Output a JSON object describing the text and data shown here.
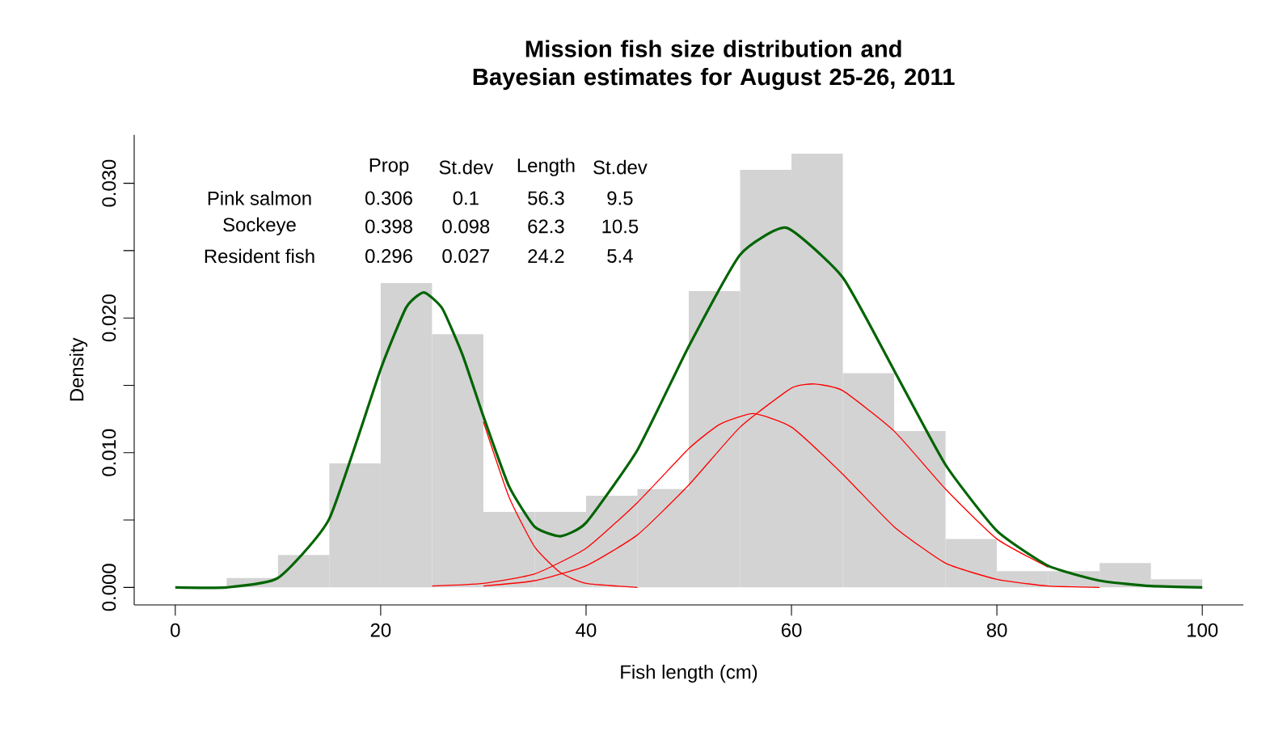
{
  "chart_data": {
    "type": "histogram",
    "title": "Mission fish size distribution and Bayesian estimates for August 25-26, 2011",
    "xlabel": "Fish length (cm)",
    "ylabel": "Density",
    "bins": [
      5,
      10,
      15,
      20,
      25,
      30,
      35,
      40,
      45,
      50,
      55,
      60,
      65,
      70,
      75,
      80,
      85,
      90,
      95,
      100
    ],
    "values": [
      0.0007,
      0.0024,
      0.0092,
      0.0226,
      0.0188,
      0.0056,
      0.0056,
      0.0068,
      0.0073,
      0.022,
      0.031,
      0.0322,
      0.0159,
      0.0116,
      0.0036,
      0.0012,
      0.0012,
      0.0018,
      0.0006
    ],
    "color": "#d3d3d3",
    "series": [
      {
        "type": "line",
        "color": "#ff0000",
        "x": [
          30,
          32.5,
          35,
          37.5,
          40,
          45
        ],
        "values": [
          0.0123,
          0.0067,
          0.003,
          0.0011,
          0.0003,
          0
        ]
      },
      {
        "type": "line",
        "color": "#ff0000",
        "x": [
          25,
          30,
          35,
          40,
          45,
          50,
          53,
          56.3,
          60,
          65,
          70,
          75,
          80,
          85,
          90
        ],
        "values": [
          0.0001,
          0.0003,
          0.001,
          0.0029,
          0.0063,
          0.0103,
          0.0121,
          0.0129,
          0.0119,
          0.0084,
          0.0045,
          0.0018,
          0.0006,
          0.0001,
          0
        ]
      },
      {
        "type": "line",
        "color": "#ff0000",
        "x": [
          30,
          35,
          40,
          45,
          50,
          55,
          60,
          62.3,
          65,
          70,
          75,
          80,
          85
        ],
        "values": [
          0.0001,
          0.0005,
          0.0016,
          0.0039,
          0.0076,
          0.0119,
          0.0148,
          0.0151,
          0.0146,
          0.0116,
          0.0073,
          0.0036,
          0.0015
        ]
      },
      {
        "type": "line",
        "color": "#006400",
        "x": [
          0,
          5,
          10,
          15,
          20,
          22.5,
          24.2,
          26,
          28,
          30,
          32.5,
          35,
          37.5,
          40,
          45,
          50,
          55,
          59.5,
          65,
          70,
          75,
          80,
          85,
          90,
          95,
          100
        ],
        "values": [
          0,
          0,
          0.0007,
          0.0051,
          0.0162,
          0.0208,
          0.0219,
          0.0207,
          0.0172,
          0.0127,
          0.0075,
          0.0045,
          0.0038,
          0.0048,
          0.0102,
          0.0179,
          0.0247,
          0.0267,
          0.023,
          0.0161,
          0.0091,
          0.0042,
          0.0016,
          0.0005,
          0.0001,
          0
        ]
      }
    ],
    "xlim": [
      -4,
      104
    ],
    "ylim": [
      -0.0013,
      0.0336
    ],
    "xticks": [
      0,
      20,
      40,
      60,
      80,
      100
    ],
    "yticks": [
      {
        "value": 0,
        "label": "0.000"
      },
      {
        "value": 0.005,
        "label": null
      },
      {
        "value": 0.01,
        "label": "0.010"
      },
      {
        "value": 0.015,
        "label": null
      },
      {
        "value": 0.02,
        "label": "0.020"
      },
      {
        "value": 0.025,
        "label": null
      },
      {
        "value": 0.03,
        "label": "0.030"
      }
    ],
    "annotations": [
      "Prop",
      "St.dev",
      "Length",
      "St.dev",
      "Pink salmon",
      "0.306",
      "0.1",
      "56.3",
      "9.5",
      "Sockeye",
      "0.398",
      "0.098",
      "62.3",
      "10.5",
      "Resident fish",
      "0.296",
      "0.027",
      "24.2",
      "5.4"
    ]
  }
}
